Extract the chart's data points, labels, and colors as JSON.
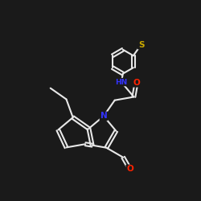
{
  "background_color": "#1a1a1a",
  "atom_colors": {
    "N": "#3333ff",
    "O": "#ff2200",
    "S": "#ccaa00"
  },
  "bond_color": "#e8e8e8",
  "bond_width": 1.5,
  "fig_size": [
    2.5,
    2.5
  ],
  "dpi": 100
}
